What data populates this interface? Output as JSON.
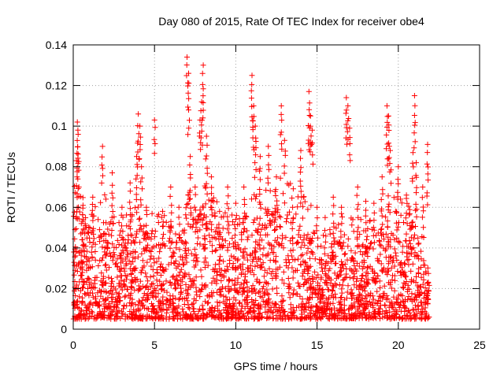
{
  "chart_data": {
    "type": "scatter",
    "title": "Day 080 of 2015, Rate Of TEC Index for receiver obe4",
    "xlabel": "GPS time / hours",
    "ylabel": "ROTI / TECUs",
    "xlim": [
      0,
      25
    ],
    "ylim": [
      0,
      0.14
    ],
    "xticks": [
      0,
      5,
      10,
      15,
      20,
      25
    ],
    "xtick_labels": [
      "0",
      "5",
      "10",
      "15",
      "20",
      "25"
    ],
    "yticks": [
      0,
      0.02,
      0.04,
      0.06,
      0.08,
      0.1,
      0.12,
      0.14
    ],
    "ytick_labels": [
      "0",
      "0.02",
      "0.04",
      "0.06",
      "0.08",
      "0.1",
      "0.12",
      "0.14"
    ],
    "grid": true,
    "marker": "+",
    "marker_color": "#ff0000",
    "series": [
      {
        "name": "ROTI",
        "x": [
          0.1,
          0.2,
          0.25,
          0.3,
          0.35,
          0.5,
          0.6,
          0.8,
          1.2,
          1.8,
          2.4,
          3.0,
          3.5,
          3.9,
          4.0,
          4.1,
          4.2,
          4.5,
          5.0,
          5.5,
          6.0,
          6.5,
          7.0,
          7.1,
          7.2,
          7.5,
          7.8,
          7.9,
          8.0,
          8.2,
          8.5,
          9.0,
          9.5,
          10.0,
          10.5,
          11.0,
          11.1,
          11.2,
          11.5,
          12.0,
          12.5,
          12.8,
          13.0,
          13.5,
          14.0,
          14.5,
          14.6,
          14.7,
          15.0,
          15.5,
          16.0,
          16.5,
          16.8,
          16.9,
          17.0,
          17.5,
          18.0,
          18.5,
          19.0,
          19.3,
          19.4,
          19.5,
          20.0,
          20.5,
          20.9,
          21.0,
          21.1,
          21.5,
          21.8
        ],
        "y": [
          0.049,
          0.083,
          0.102,
          0.096,
          0.07,
          0.052,
          0.061,
          0.05,
          0.065,
          0.09,
          0.077,
          0.06,
          0.072,
          0.085,
          0.106,
          0.1,
          0.08,
          0.06,
          0.103,
          0.058,
          0.07,
          0.06,
          0.134,
          0.126,
          0.085,
          0.07,
          0.103,
          0.112,
          0.13,
          0.095,
          0.075,
          0.058,
          0.07,
          0.062,
          0.07,
          0.125,
          0.11,
          0.1,
          0.085,
          0.09,
          0.075,
          0.11,
          0.093,
          0.06,
          0.088,
          0.117,
          0.105,
          0.098,
          0.06,
          0.055,
          0.065,
          0.06,
          0.114,
          0.11,
          0.099,
          0.07,
          0.063,
          0.062,
          0.075,
          0.11,
          0.105,
          0.088,
          0.08,
          0.066,
          0.087,
          0.115,
          0.082,
          0.07,
          0.091
        ],
        "envelope_x": [
          0,
          0.5,
          1,
          1.5,
          2,
          2.5,
          3,
          3.5,
          4,
          4.5,
          5,
          5.5,
          6,
          6.5,
          7,
          7.5,
          8,
          8.5,
          9,
          9.5,
          10,
          10.5,
          11,
          11.5,
          12,
          12.5,
          13,
          13.5,
          14,
          14.5,
          15,
          15.5,
          16,
          16.5,
          17,
          17.5,
          18,
          18.5,
          19,
          19.5,
          20,
          20.5,
          21,
          21.5,
          21.9
        ],
        "envelope_y": [
          0.06,
          0.06,
          0.05,
          0.05,
          0.055,
          0.045,
          0.045,
          0.045,
          0.055,
          0.05,
          0.045,
          0.045,
          0.045,
          0.045,
          0.055,
          0.055,
          0.06,
          0.055,
          0.05,
          0.045,
          0.045,
          0.05,
          0.055,
          0.055,
          0.06,
          0.06,
          0.065,
          0.06,
          0.06,
          0.055,
          0.035,
          0.035,
          0.045,
          0.045,
          0.05,
          0.045,
          0.04,
          0.045,
          0.05,
          0.055,
          0.055,
          0.055,
          0.05,
          0.04,
          0.025
        ],
        "floor": 0.005
      }
    ]
  }
}
